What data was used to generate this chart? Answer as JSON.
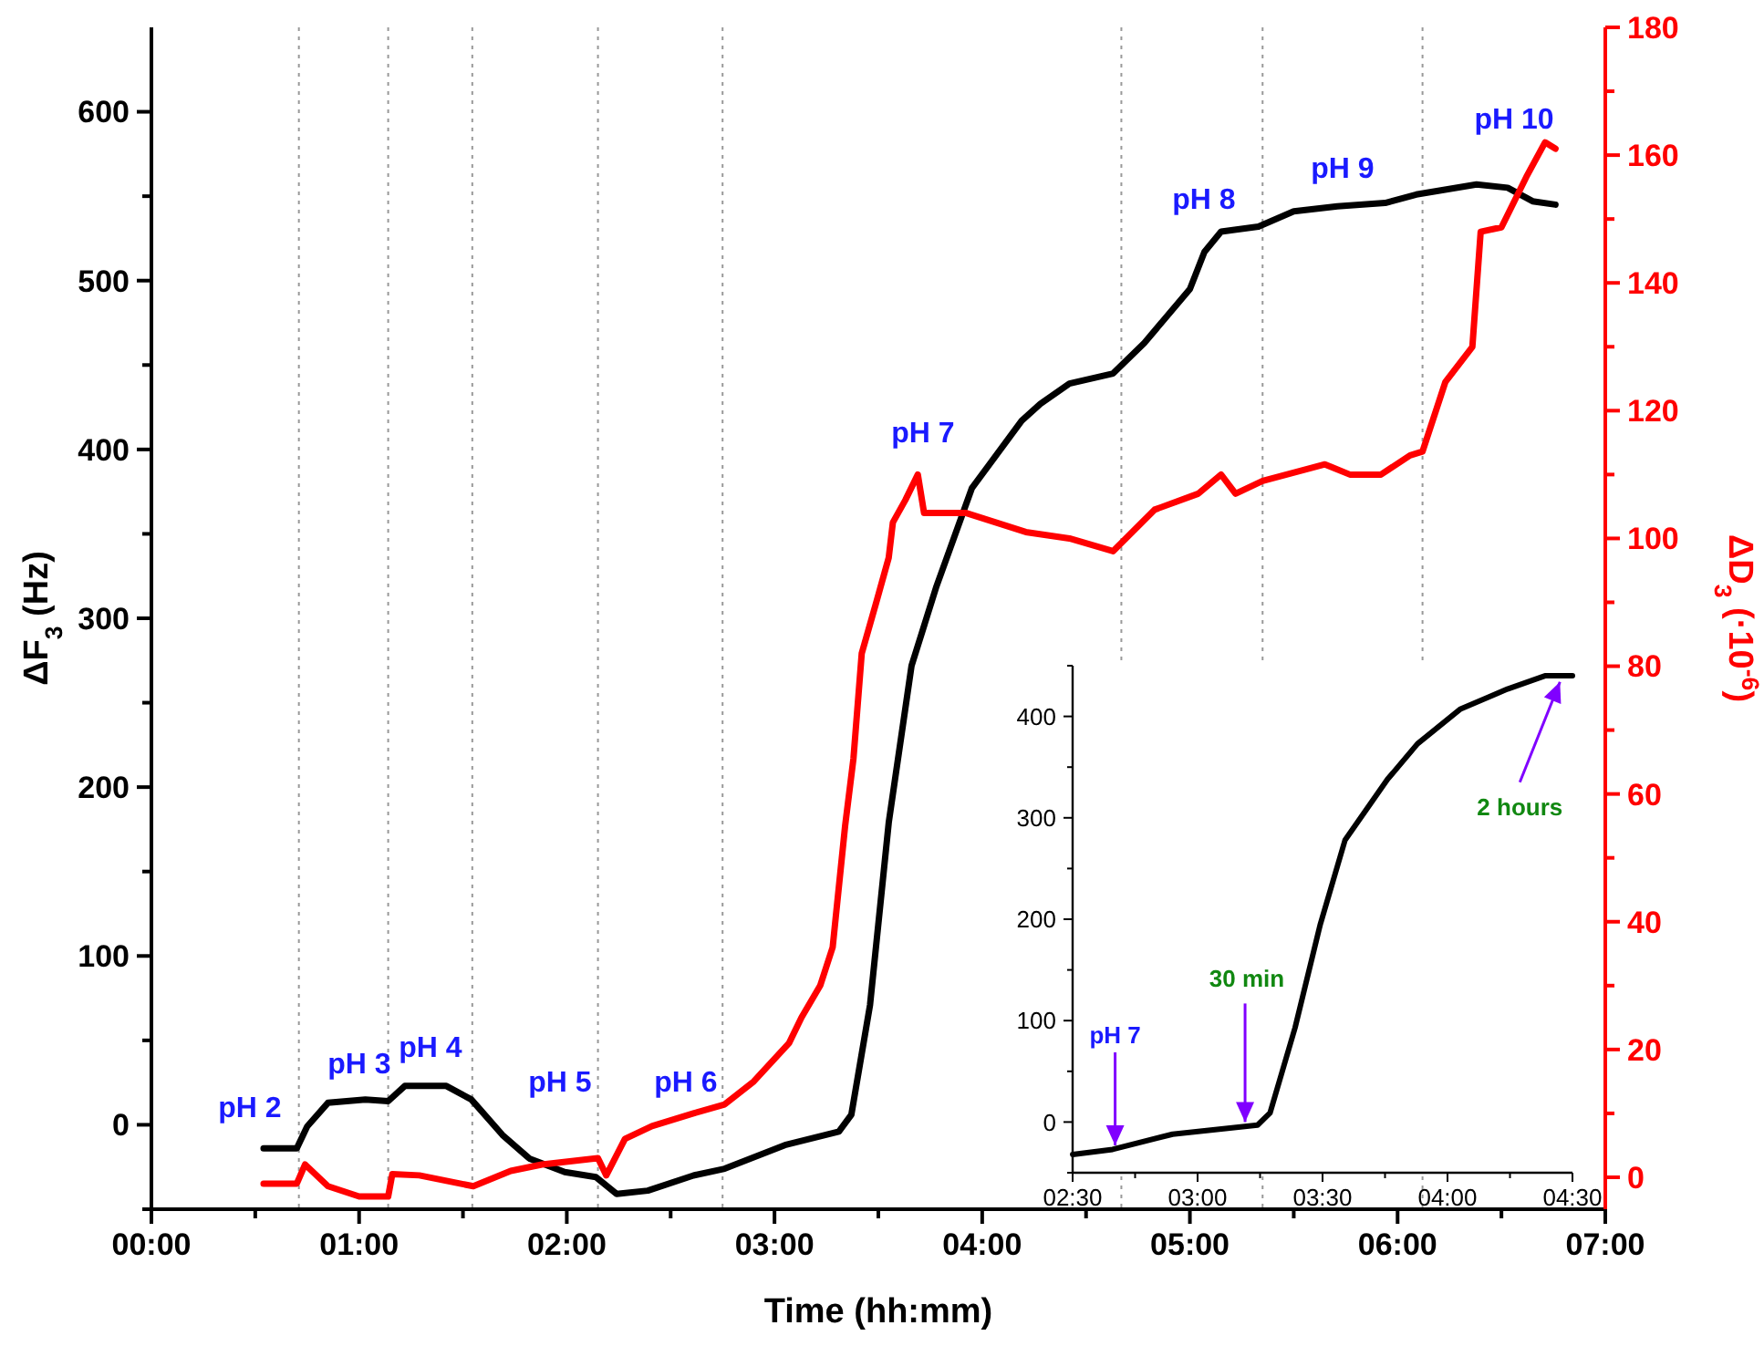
{
  "chart_data": [
    {
      "type": "line",
      "xlabel": "Time (hh:mm)",
      "ylabel": "ΔF$_{3}$ (Hz)",
      "y2label": "ΔD$_{3}$ (·10$^{-6}$)",
      "xlim": [
        0,
        7
      ],
      "xticks": [
        {
          "value": 0,
          "label": "00:00"
        },
        {
          "value": 0.5,
          "label": null
        },
        {
          "value": 1,
          "label": "01:00"
        },
        {
          "value": 1.5,
          "label": null
        },
        {
          "value": 2,
          "label": "02:00"
        },
        {
          "value": 2.5,
          "label": null
        },
        {
          "value": 3,
          "label": "03:00"
        },
        {
          "value": 3.5,
          "label": null
        },
        {
          "value": 4,
          "label": "04:00"
        },
        {
          "value": 4.5,
          "label": null
        },
        {
          "value": 5,
          "label": "05:00"
        },
        {
          "value": 5.5,
          "label": null
        },
        {
          "value": 6,
          "label": "06:00"
        },
        {
          "value": 6.5,
          "label": null
        },
        {
          "value": 7,
          "label": "07:00"
        }
      ],
      "ylim": [
        -50,
        650
      ],
      "yticks": [
        {
          "value": -50,
          "label": null
        },
        0,
        {
          "value": 50,
          "label": null
        },
        100,
        {
          "value": 150,
          "label": null
        },
        200,
        {
          "value": 250,
          "label": null
        },
        300,
        {
          "value": 350,
          "label": null
        },
        400,
        {
          "value": 450,
          "label": null
        },
        500,
        {
          "value": 550,
          "label": null
        },
        600
      ],
      "y2lim": [
        -5,
        180
      ],
      "y2ticks": [
        0,
        {
          "value": 10,
          "label": null
        },
        20,
        {
          "value": 30,
          "label": null
        },
        40,
        {
          "value": 50,
          "label": null
        },
        60,
        {
          "value": 70,
          "label": null
        },
        80,
        {
          "value": 90,
          "label": null
        },
        100,
        {
          "value": 110,
          "label": null
        },
        120,
        {
          "value": 130,
          "label": null
        },
        140,
        {
          "value": 150,
          "label": null
        },
        160,
        {
          "value": 170,
          "label": null
        },
        180
      ],
      "series": [
        {
          "color": "#000000",
          "x": [
            0.54,
            0.7,
            0.75,
            0.85,
            1.03,
            1.14,
            1.22,
            1.42,
            1.54,
            1.69,
            1.82,
            1.99,
            2.14,
            2.24,
            2.39,
            2.61,
            2.76,
            3.05,
            3.31,
            3.37,
            3.46,
            3.55,
            3.66,
            3.78,
            3.95,
            4.19,
            4.28,
            4.42,
            4.63,
            4.78,
            5.0,
            5.07,
            5.15,
            5.33,
            5.5,
            5.71,
            5.94,
            6.09,
            6.38,
            6.53,
            6.65,
            6.76
          ],
          "values": [
            -14,
            -14,
            -1,
            13,
            15,
            14,
            23,
            23,
            15,
            -6,
            -20,
            -28,
            -31,
            -41,
            -39,
            -30,
            -26,
            -12,
            -4,
            6,
            71,
            179,
            272,
            319,
            377,
            417,
            427,
            439,
            445,
            463,
            495,
            517,
            529,
            532,
            541,
            544,
            546,
            551,
            557,
            555,
            547,
            545
          ]
        },
        {
          "color": "#ff0000",
          "axis": "y2",
          "x": [
            0.54,
            0.7,
            0.74,
            0.85,
            1.0,
            1.14,
            1.16,
            1.29,
            1.55,
            1.73,
            1.88,
            2.15,
            2.19,
            2.28,
            2.41,
            2.61,
            2.76,
            2.9,
            3.07,
            3.13,
            3.22,
            3.28,
            3.34,
            3.38,
            3.42,
            3.49,
            3.55,
            3.57,
            3.63,
            3.69,
            3.72,
            3.92,
            4.21,
            4.42,
            4.63,
            4.83,
            5.04,
            5.15,
            5.22,
            5.35,
            5.65,
            5.77,
            5.92,
            6.06,
            6.12,
            6.23,
            6.36,
            6.4,
            6.5,
            6.62,
            6.71,
            6.76
          ],
          "values": [
            -1,
            -1,
            2,
            -1.4,
            -3,
            -3,
            0.5,
            0.3,
            -1.4,
            1,
            2,
            3,
            0.3,
            6,
            8,
            10,
            11.4,
            15,
            21,
            25,
            30,
            36,
            55,
            65.5,
            82,
            90,
            97,
            102.5,
            106,
            110,
            104,
            104,
            101,
            100,
            98,
            104.5,
            107,
            110,
            107,
            109,
            111.6,
            110,
            110,
            113,
            113.6,
            124.5,
            130,
            148,
            148.7,
            156.6,
            162,
            161
          ]
        }
      ],
      "ref_lines": [
        {
          "axis": "x",
          "value": 0.71,
          "color": "#999999",
          "line_style": "dotted"
        },
        {
          "axis": "x",
          "value": 1.14,
          "color": "#999999",
          "line_style": "dotted"
        },
        {
          "axis": "x",
          "value": 1.545,
          "color": "#999999",
          "line_style": "dotted"
        },
        {
          "axis": "x",
          "value": 2.15,
          "color": "#999999",
          "line_style": "dotted"
        },
        {
          "axis": "x",
          "value": 2.75,
          "color": "#999999",
          "line_style": "dotted"
        },
        {
          "axis": "x",
          "value": 4.67,
          "color": "#999999",
          "line_style": "dotted"
        },
        {
          "axis": "x",
          "value": 5.35,
          "color": "#999999",
          "line_style": "dotted"
        },
        {
          "axis": "x",
          "value": 6.12,
          "color": "#999999",
          "line_style": "dotted"
        }
      ],
      "annotations": [
        "pH 2",
        "pH 3",
        "pH 4",
        "pH 5",
        "pH 6",
        "pH 7",
        "pH 8",
        "pH 9",
        "pH 10"
      ]
    },
    {
      "type": "line",
      "xlim": [
        2.5,
        4.5
      ],
      "xticks": [
        {
          "value": 2.5,
          "label": "02:30"
        },
        {
          "value": 2.75,
          "label": null
        },
        {
          "value": 3,
          "label": "03:00"
        },
        {
          "value": 3.25,
          "label": null
        },
        {
          "value": 3.5,
          "label": "03:30"
        },
        {
          "value": 3.75,
          "label": null
        },
        {
          "value": 4,
          "label": "04:00"
        },
        {
          "value": 4.25,
          "label": null
        },
        {
          "value": 4.5,
          "label": "04:30"
        }
      ],
      "ylim": [
        -50,
        450
      ],
      "yticks": [
        {
          "value": -50,
          "label": null
        },
        0,
        {
          "value": 50,
          "label": null
        },
        100,
        {
          "value": 150,
          "label": null
        },
        200,
        {
          "value": 250,
          "label": null
        },
        300,
        {
          "value": 350,
          "label": null
        },
        400,
        {
          "value": 450,
          "label": null
        }
      ],
      "series": [
        {
          "color": "#000000",
          "x": [
            2.5,
            2.66,
            2.9,
            3.24,
            3.29,
            3.39,
            3.49,
            3.59,
            3.76,
            3.88,
            4.05,
            4.24,
            4.39,
            4.5
          ],
          "values": [
            -32,
            -27,
            -12,
            -3,
            9,
            93,
            194,
            278,
            338,
            373,
            407,
            427,
            440,
            440
          ]
        }
      ],
      "annotations": [
        {
          "text": "pH 7",
          "x": 2.67,
          "y": -23
        },
        {
          "text": "30 min",
          "x": 3.19,
          "y": 0
        },
        {
          "text": "2 hours",
          "x": 4.45,
          "y": 434
        }
      ]
    }
  ]
}
